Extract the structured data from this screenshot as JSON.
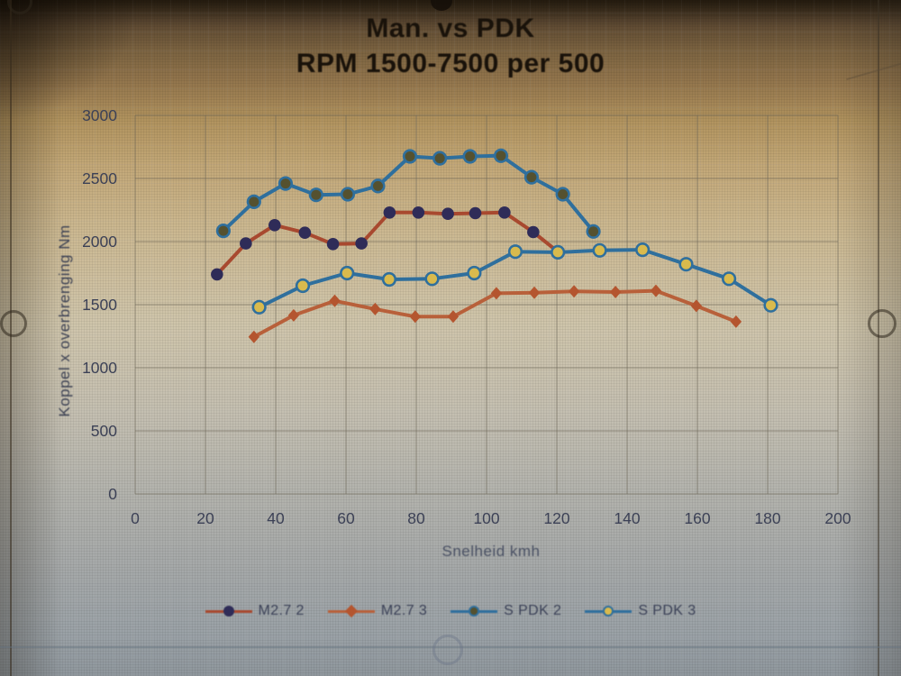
{
  "title": {
    "line1": "Man. vs PDK",
    "line2": "RPM 1500-7500 per 500"
  },
  "chart_data": {
    "type": "line",
    "title": "Man. vs PDK",
    "subtitle": "RPM 1500-7500 per 500",
    "xlabel": "Snelheid kmh",
    "ylabel": "Koppel x overbrenging Nm",
    "xlim": [
      0,
      200
    ],
    "ylim": [
      0,
      3000
    ],
    "x_ticks": [
      0,
      20,
      40,
      60,
      80,
      100,
      120,
      140,
      160,
      180,
      200
    ],
    "y_ticks": [
      0,
      500,
      1000,
      1500,
      2000,
      2500,
      3000
    ],
    "grid": true,
    "legend_position": "bottom",
    "gridline_color": "rgba(108,102,88,0.48)",
    "tick_color": "#3c4156",
    "series": [
      {
        "name": "M2.7 2",
        "color": "#a8492f",
        "marker": "circle",
        "marker_fill": "#2f2c58",
        "marker_stroke": "none",
        "x": [
          23.3,
          31.5,
          39.7,
          48.3,
          56.3,
          64.4,
          72.4,
          80.6,
          89.0,
          96.8,
          105.1,
          113.3,
          120.5
        ],
        "y": [
          1740,
          1985,
          2130,
          2070,
          1980,
          1985,
          2230,
          2230,
          2220,
          2225,
          2230,
          2075,
          1915
        ]
      },
      {
        "name": "M2.7 3",
        "color": "#b8603a",
        "marker": "diamond",
        "marker_fill": "#b4552f",
        "marker_stroke": "none",
        "x": [
          33.8,
          45.1,
          56.8,
          68.3,
          79.7,
          90.5,
          102.8,
          113.6,
          124.9,
          136.7,
          148.2,
          159.7,
          171.0
        ],
        "y": [
          1245,
          1415,
          1530,
          1465,
          1405,
          1405,
          1590,
          1595,
          1605,
          1600,
          1610,
          1490,
          1365
        ]
      },
      {
        "name": "S PDK 2",
        "color": "#2f6f9d",
        "marker": "circle",
        "marker_fill": "#55512f",
        "marker_stroke": "#2f6f9d",
        "x": [
          25.1,
          33.8,
          42.8,
          51.5,
          60.5,
          69.1,
          78.2,
          86.7,
          95.3,
          104.1,
          112.8,
          121.7,
          130.4
        ],
        "y": [
          2085,
          2315,
          2460,
          2370,
          2375,
          2440,
          2675,
          2660,
          2675,
          2680,
          2510,
          2375,
          2080
        ]
      },
      {
        "name": "S PDK 3",
        "color": "#2f6f9d",
        "marker": "circle",
        "marker_fill": "#d9ba4d",
        "marker_stroke": "#2f6f9d",
        "x": [
          35.3,
          47.7,
          60.3,
          72.3,
          84.5,
          96.5,
          108.2,
          120.3,
          132.2,
          144.4,
          156.8,
          169.0,
          180.9
        ],
        "y": [
          1480,
          1650,
          1750,
          1700,
          1705,
          1750,
          1920,
          1915,
          1930,
          1935,
          1820,
          1705,
          1495
        ]
      }
    ]
  }
}
